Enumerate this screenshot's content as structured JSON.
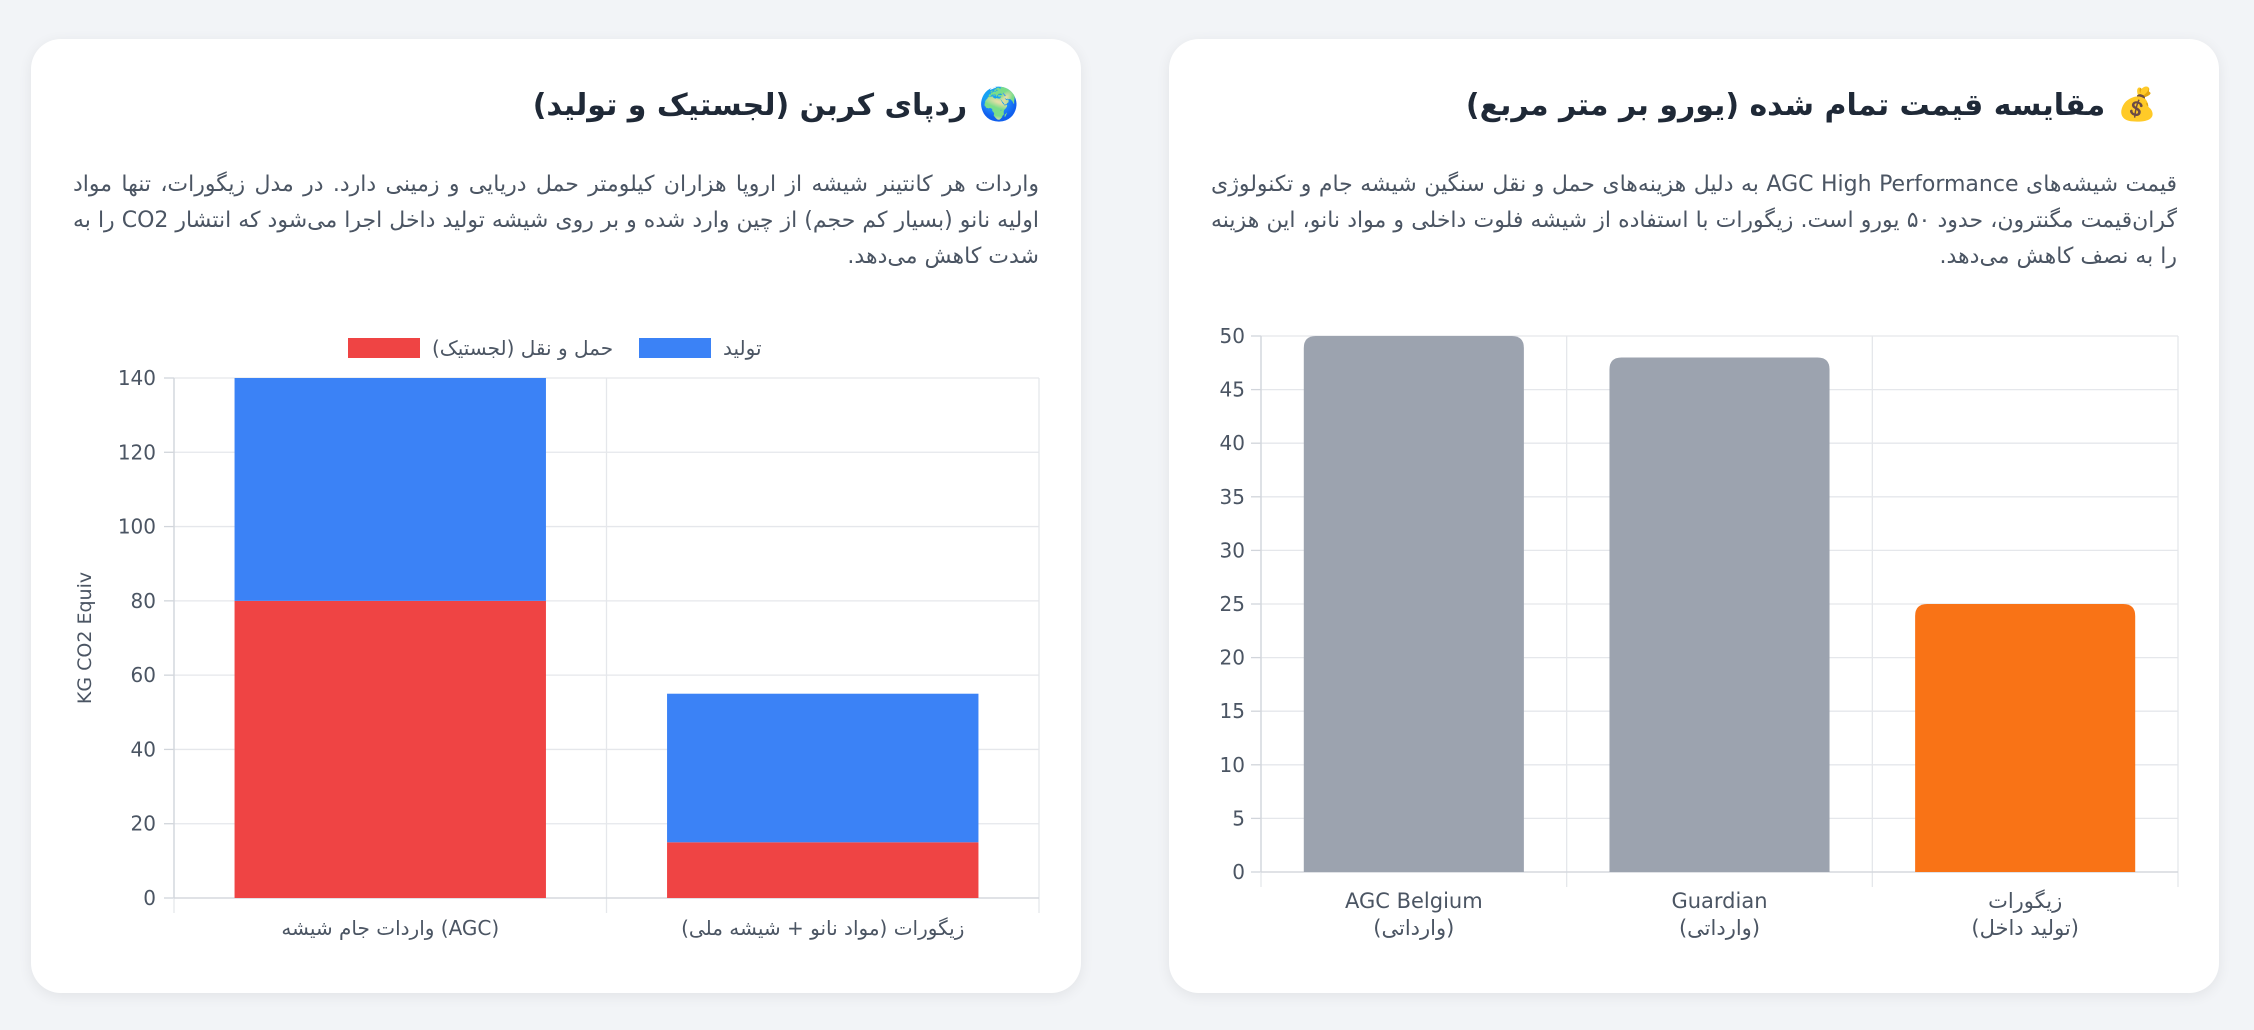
{
  "cards": [
    {
      "id": "price",
      "emoji": "💰",
      "title": "مقایسه قیمت تمام شده (یورو بر متر مربع)",
      "description": "قیمت شیشه‌های AGC High Performance به دلیل هزینه‌های حمل و نقل سنگین شیشه جام و تکنولوژی گران‌قیمت مگنترون، حدود ۵۰ یورو است. زیگورات با استفاده از شیشه فلوت داخلی و مواد نانو، این هزینه را به نصف کاهش می‌دهد."
    },
    {
      "id": "carbon",
      "emoji": "🌍",
      "title": "ردپای کربن (لجستیک و تولید)",
      "description": "واردات هر کانتینر شیشه از اروپا هزاران کیلومتر حمل دریایی و زمینی دارد. در مدل زیگورات، تنها مواد اولیه نانو (بسیار کم حجم) از چین وارد شده و بر روی شیشه تولید داخل اجرا می‌شود که انتشار CO2 را به شدت کاهش می‌دهد."
    }
  ],
  "chart_data": [
    {
      "id": "price-chart",
      "type": "bar",
      "categories": [
        [
          "AGC Belgium",
          "(وارداتی)"
        ],
        [
          "Guardian",
          "(وارداتی)"
        ],
        [
          "زیگورات",
          "(تولید داخل)"
        ]
      ],
      "values": [
        50,
        48,
        25
      ],
      "colors": [
        "#9ca3af",
        "#9ca3af",
        "#f97316"
      ],
      "ylim": [
        0,
        50
      ],
      "yticks": [
        0,
        5,
        10,
        15,
        20,
        25,
        30,
        35,
        40,
        45,
        50
      ],
      "grid": true,
      "legend": "none"
    },
    {
      "id": "carbon-chart",
      "type": "bar",
      "stacked": true,
      "categories": [
        "واردات جام شیشه (AGC)",
        "زیگورات (مواد نانو + شیشه ملی)"
      ],
      "series": [
        {
          "name": "حمل و نقل (لجستیک)",
          "values": [
            80,
            15
          ],
          "color": "#ef4444"
        },
        {
          "name": "تولید",
          "values": [
            60,
            40
          ],
          "color": "#3b82f6"
        }
      ],
      "ylabel": "KG CO2 Equiv",
      "ylim": [
        0,
        140
      ],
      "yticks": [
        0,
        20,
        40,
        60,
        80,
        100,
        120,
        140
      ],
      "grid": true,
      "legend": "top-center"
    }
  ]
}
